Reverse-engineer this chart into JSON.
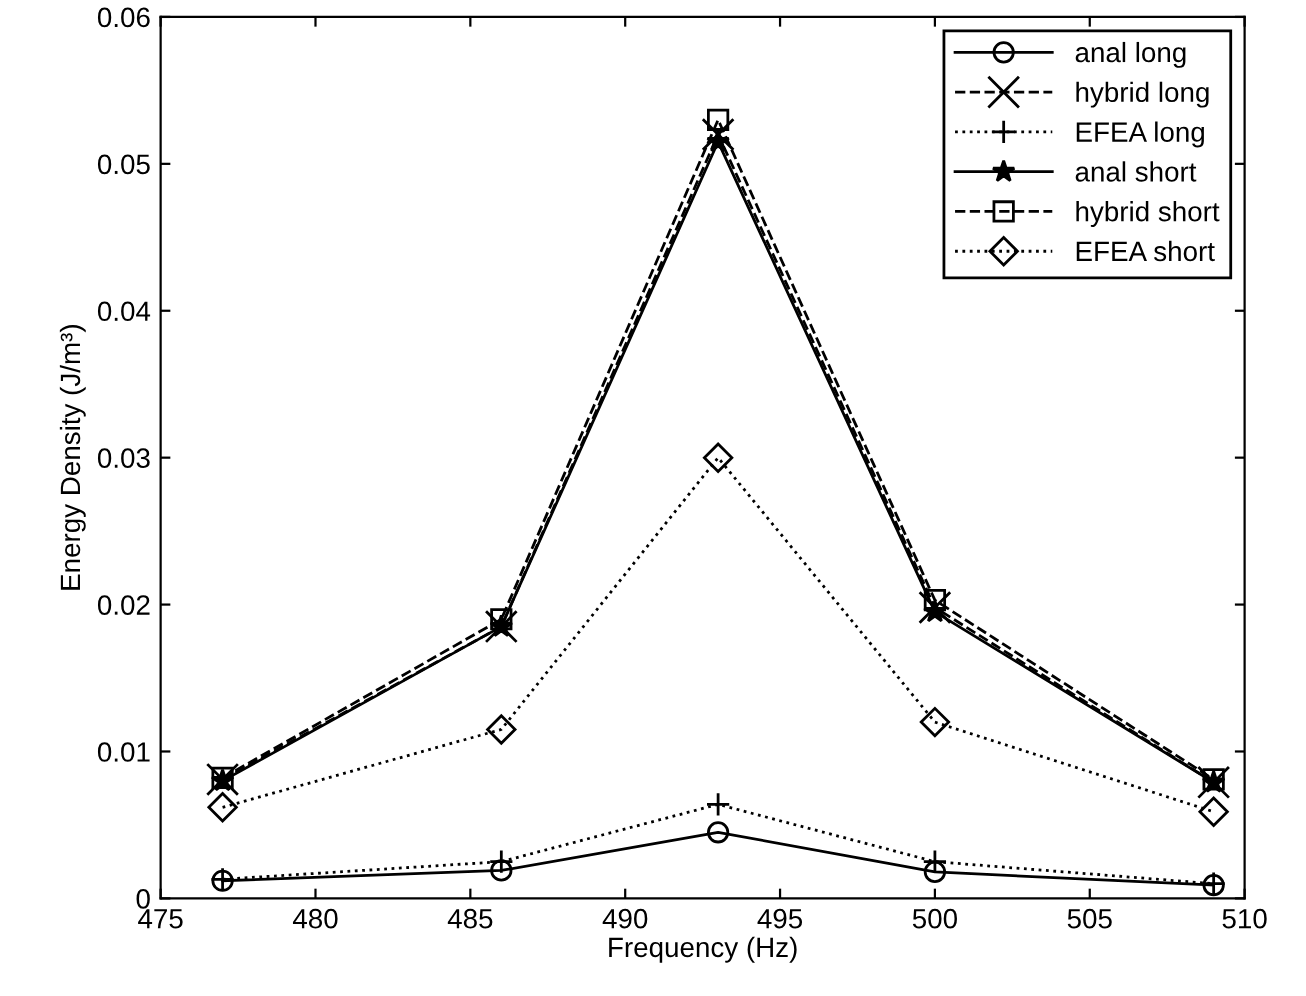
{
  "chart_data": {
    "type": "line",
    "xlabel": "Frequency (Hz)",
    "ylabel": "Energy Density (J/m³)",
    "x": [
      477,
      486,
      493,
      500,
      509
    ],
    "xlim": [
      475,
      510
    ],
    "xticks": [
      475,
      480,
      485,
      490,
      495,
      500,
      505,
      510
    ],
    "ylim": [
      0,
      0.06
    ],
    "yticks": [
      0,
      0.01,
      0.02,
      0.03,
      0.04,
      0.05,
      0.06
    ],
    "legend": "top right",
    "grid": false,
    "series": [
      {
        "name": "anal long",
        "color": "#000000",
        "marker": "circle",
        "line_style": "solid",
        "values": [
          0.0012,
          0.0019,
          0.0045,
          0.0018,
          0.0009
        ]
      },
      {
        "name": "hybrid long",
        "color": "#000000",
        "marker": "cross",
        "line_style": "dashed",
        "values": [
          0.0081,
          0.0185,
          0.052,
          0.0198,
          0.0079
        ]
      },
      {
        "name": "EFEA long",
        "color": "#000000",
        "marker": "plus",
        "line_style": "dotted",
        "values": [
          0.0013,
          0.0025,
          0.0064,
          0.0025,
          0.001
        ]
      },
      {
        "name": "anal short",
        "color": "#000000",
        "marker": "star",
        "line_style": "solid",
        "values": [
          0.008,
          0.0185,
          0.0515,
          0.0195,
          0.0079
        ]
      },
      {
        "name": "hybrid short",
        "color": "#000000",
        "marker": "square",
        "line_style": "dashed",
        "values": [
          0.0082,
          0.019,
          0.053,
          0.0203,
          0.0081
        ]
      },
      {
        "name": "EFEA short",
        "color": "#000000",
        "marker": "diamond",
        "line_style": "dotted",
        "values": [
          0.0062,
          0.0115,
          0.03,
          0.012,
          0.0059
        ]
      }
    ]
  }
}
